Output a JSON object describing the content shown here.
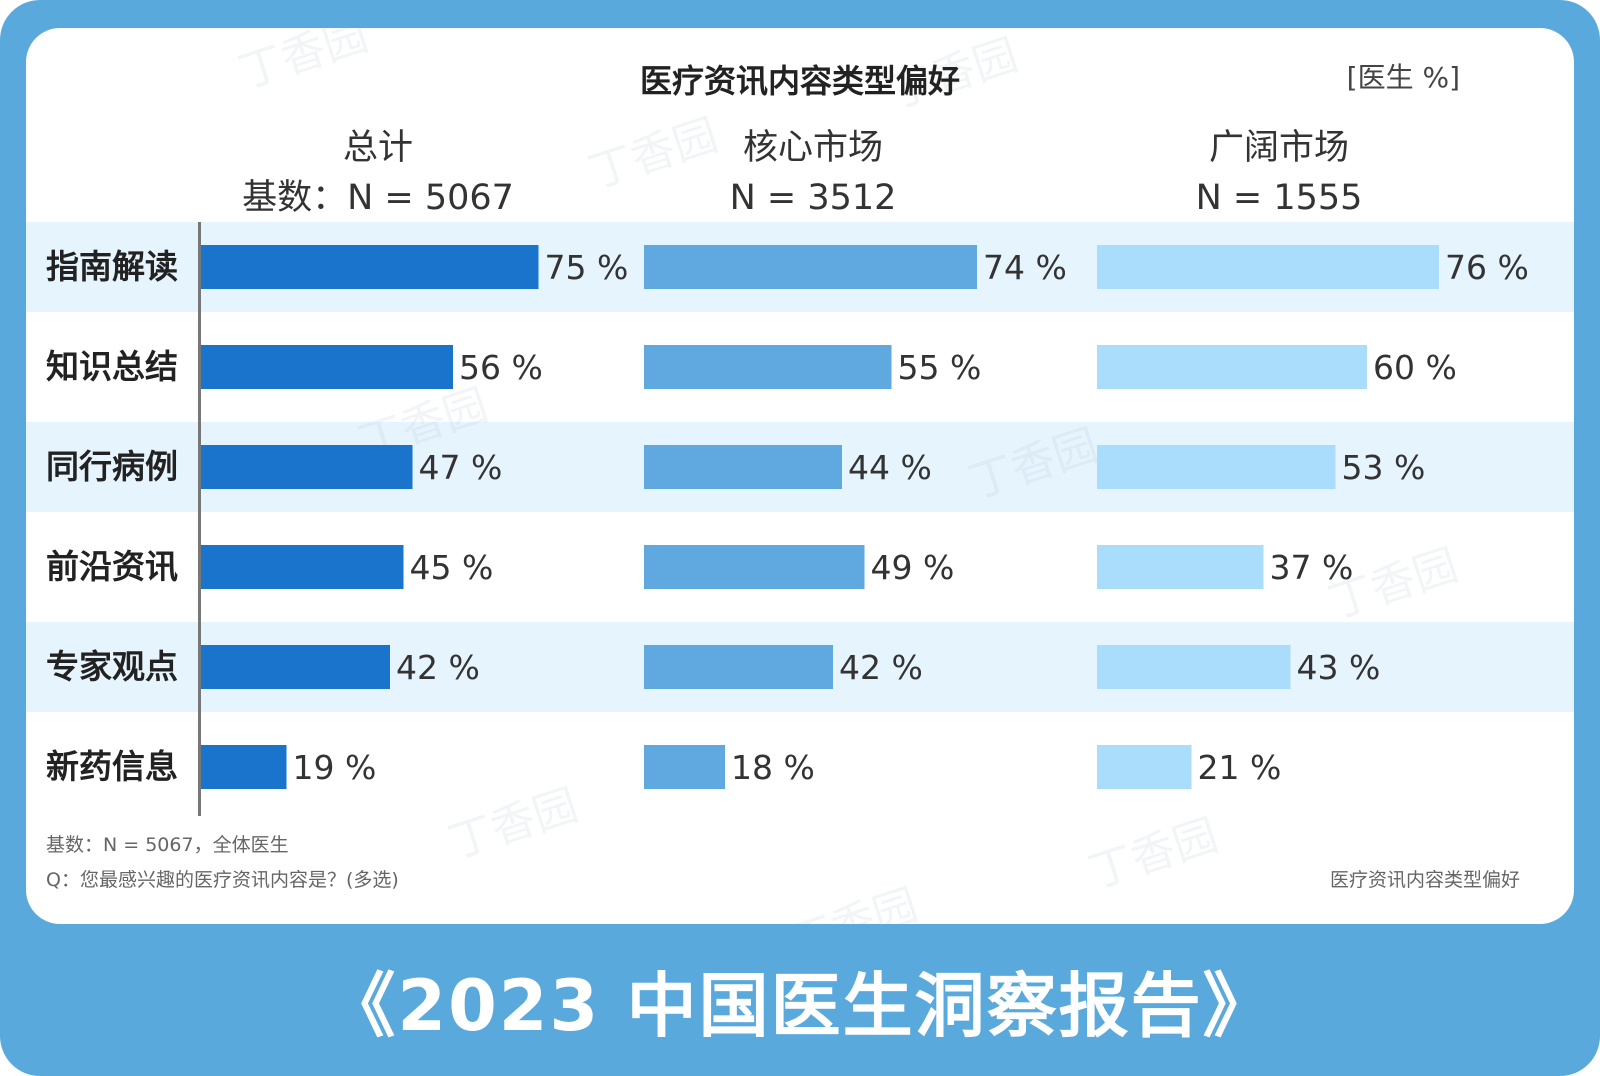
{
  "chart_title": "医疗资讯内容类型偏好",
  "unit_label": "[医生 %]",
  "columns": [
    {
      "name": "总计",
      "base": "基数：N = 5067"
    },
    {
      "name": "核心市场",
      "base": "N = 3512"
    },
    {
      "name": "广阔市场",
      "base": "N = 1555"
    }
  ],
  "footnotes": {
    "base": "基数：N = 5067，全体医生",
    "question": "Q：您最感兴趣的医疗资讯内容是？(多选)",
    "source_label": "医疗资讯内容类型偏好"
  },
  "banner_title": "《2023 中国医生洞察报告》",
  "watermark_text": "丁香园",
  "colors": {
    "frame": "#5aa9dc",
    "band": "#e6f4fd",
    "series_total": "#1a74cc",
    "series_core": "#5fa8e0",
    "series_broad": "#aadcfb"
  },
  "chart_data": {
    "type": "bar",
    "orientation": "horizontal",
    "title": "医疗资讯内容类型偏好",
    "unit": "%",
    "categories": [
      "指南解读",
      "知识总结",
      "同行病例",
      "前沿资讯",
      "专家观点",
      "新药信息"
    ],
    "series": [
      {
        "name": "总计",
        "base": "基数：N = 5067",
        "color": "#1a74cc",
        "values": [
          75,
          56,
          47,
          45,
          42,
          19
        ]
      },
      {
        "name": "核心市场",
        "base": "N = 3512",
        "color": "#5fa8e0",
        "values": [
          74,
          55,
          44,
          49,
          42,
          18
        ]
      },
      {
        "name": "广阔市场",
        "base": "N = 1555",
        "color": "#aadcfb",
        "values": [
          76,
          60,
          53,
          37,
          43,
          21
        ]
      }
    ],
    "label_suffix": " %",
    "xlim": [
      0,
      100
    ],
    "grid": false,
    "legend": "none"
  }
}
